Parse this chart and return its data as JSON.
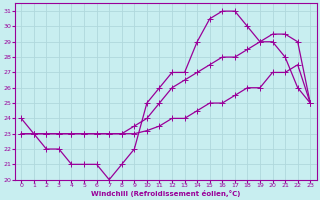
{
  "xlabel": "Windchill (Refroidissement éolien,°C)",
  "bg_color": "#c8eef0",
  "line_color": "#990099",
  "grid_color": "#b0d8dc",
  "xlim": [
    -0.5,
    23.5
  ],
  "ylim": [
    20,
    31.5
  ],
  "xticks": [
    0,
    1,
    2,
    3,
    4,
    5,
    6,
    7,
    8,
    9,
    10,
    11,
    12,
    13,
    14,
    15,
    16,
    17,
    18,
    19,
    20,
    21,
    22,
    23
  ],
  "yticks": [
    20,
    21,
    22,
    23,
    24,
    25,
    26,
    27,
    28,
    29,
    30,
    31
  ],
  "curve1_x": [
    0,
    1,
    2,
    3,
    4,
    5,
    6,
    7,
    8,
    9,
    10,
    11,
    12,
    13,
    14,
    15,
    16,
    17,
    18,
    19,
    20,
    21,
    22,
    23
  ],
  "curve1_y": [
    24,
    23,
    22,
    22,
    21,
    21,
    21,
    20,
    21,
    22,
    25,
    26,
    27,
    27,
    29,
    30.5,
    31,
    31,
    30,
    29,
    29,
    28,
    26,
    25
  ],
  "curve2_x": [
    0,
    1,
    2,
    3,
    4,
    5,
    6,
    7,
    8,
    9,
    10,
    11,
    12,
    13,
    14,
    15,
    16,
    17,
    18,
    19,
    20,
    21,
    22,
    23
  ],
  "curve2_y": [
    23,
    23,
    23,
    23,
    23,
    23,
    23,
    23,
    23,
    23.5,
    24,
    25,
    26,
    26.5,
    27,
    27.5,
    28,
    28,
    28.5,
    29,
    29.5,
    29.5,
    29,
    25
  ],
  "curve3_x": [
    0,
    1,
    2,
    3,
    4,
    5,
    6,
    7,
    8,
    9,
    10,
    11,
    12,
    13,
    14,
    15,
    16,
    17,
    18,
    19,
    20,
    21,
    22,
    23
  ],
  "curve3_y": [
    23,
    23,
    23,
    23,
    23,
    23,
    23,
    23,
    23,
    23,
    23.2,
    23.5,
    24,
    24,
    24.5,
    25,
    25,
    25.5,
    26,
    26,
    27,
    27,
    27.5,
    25
  ]
}
